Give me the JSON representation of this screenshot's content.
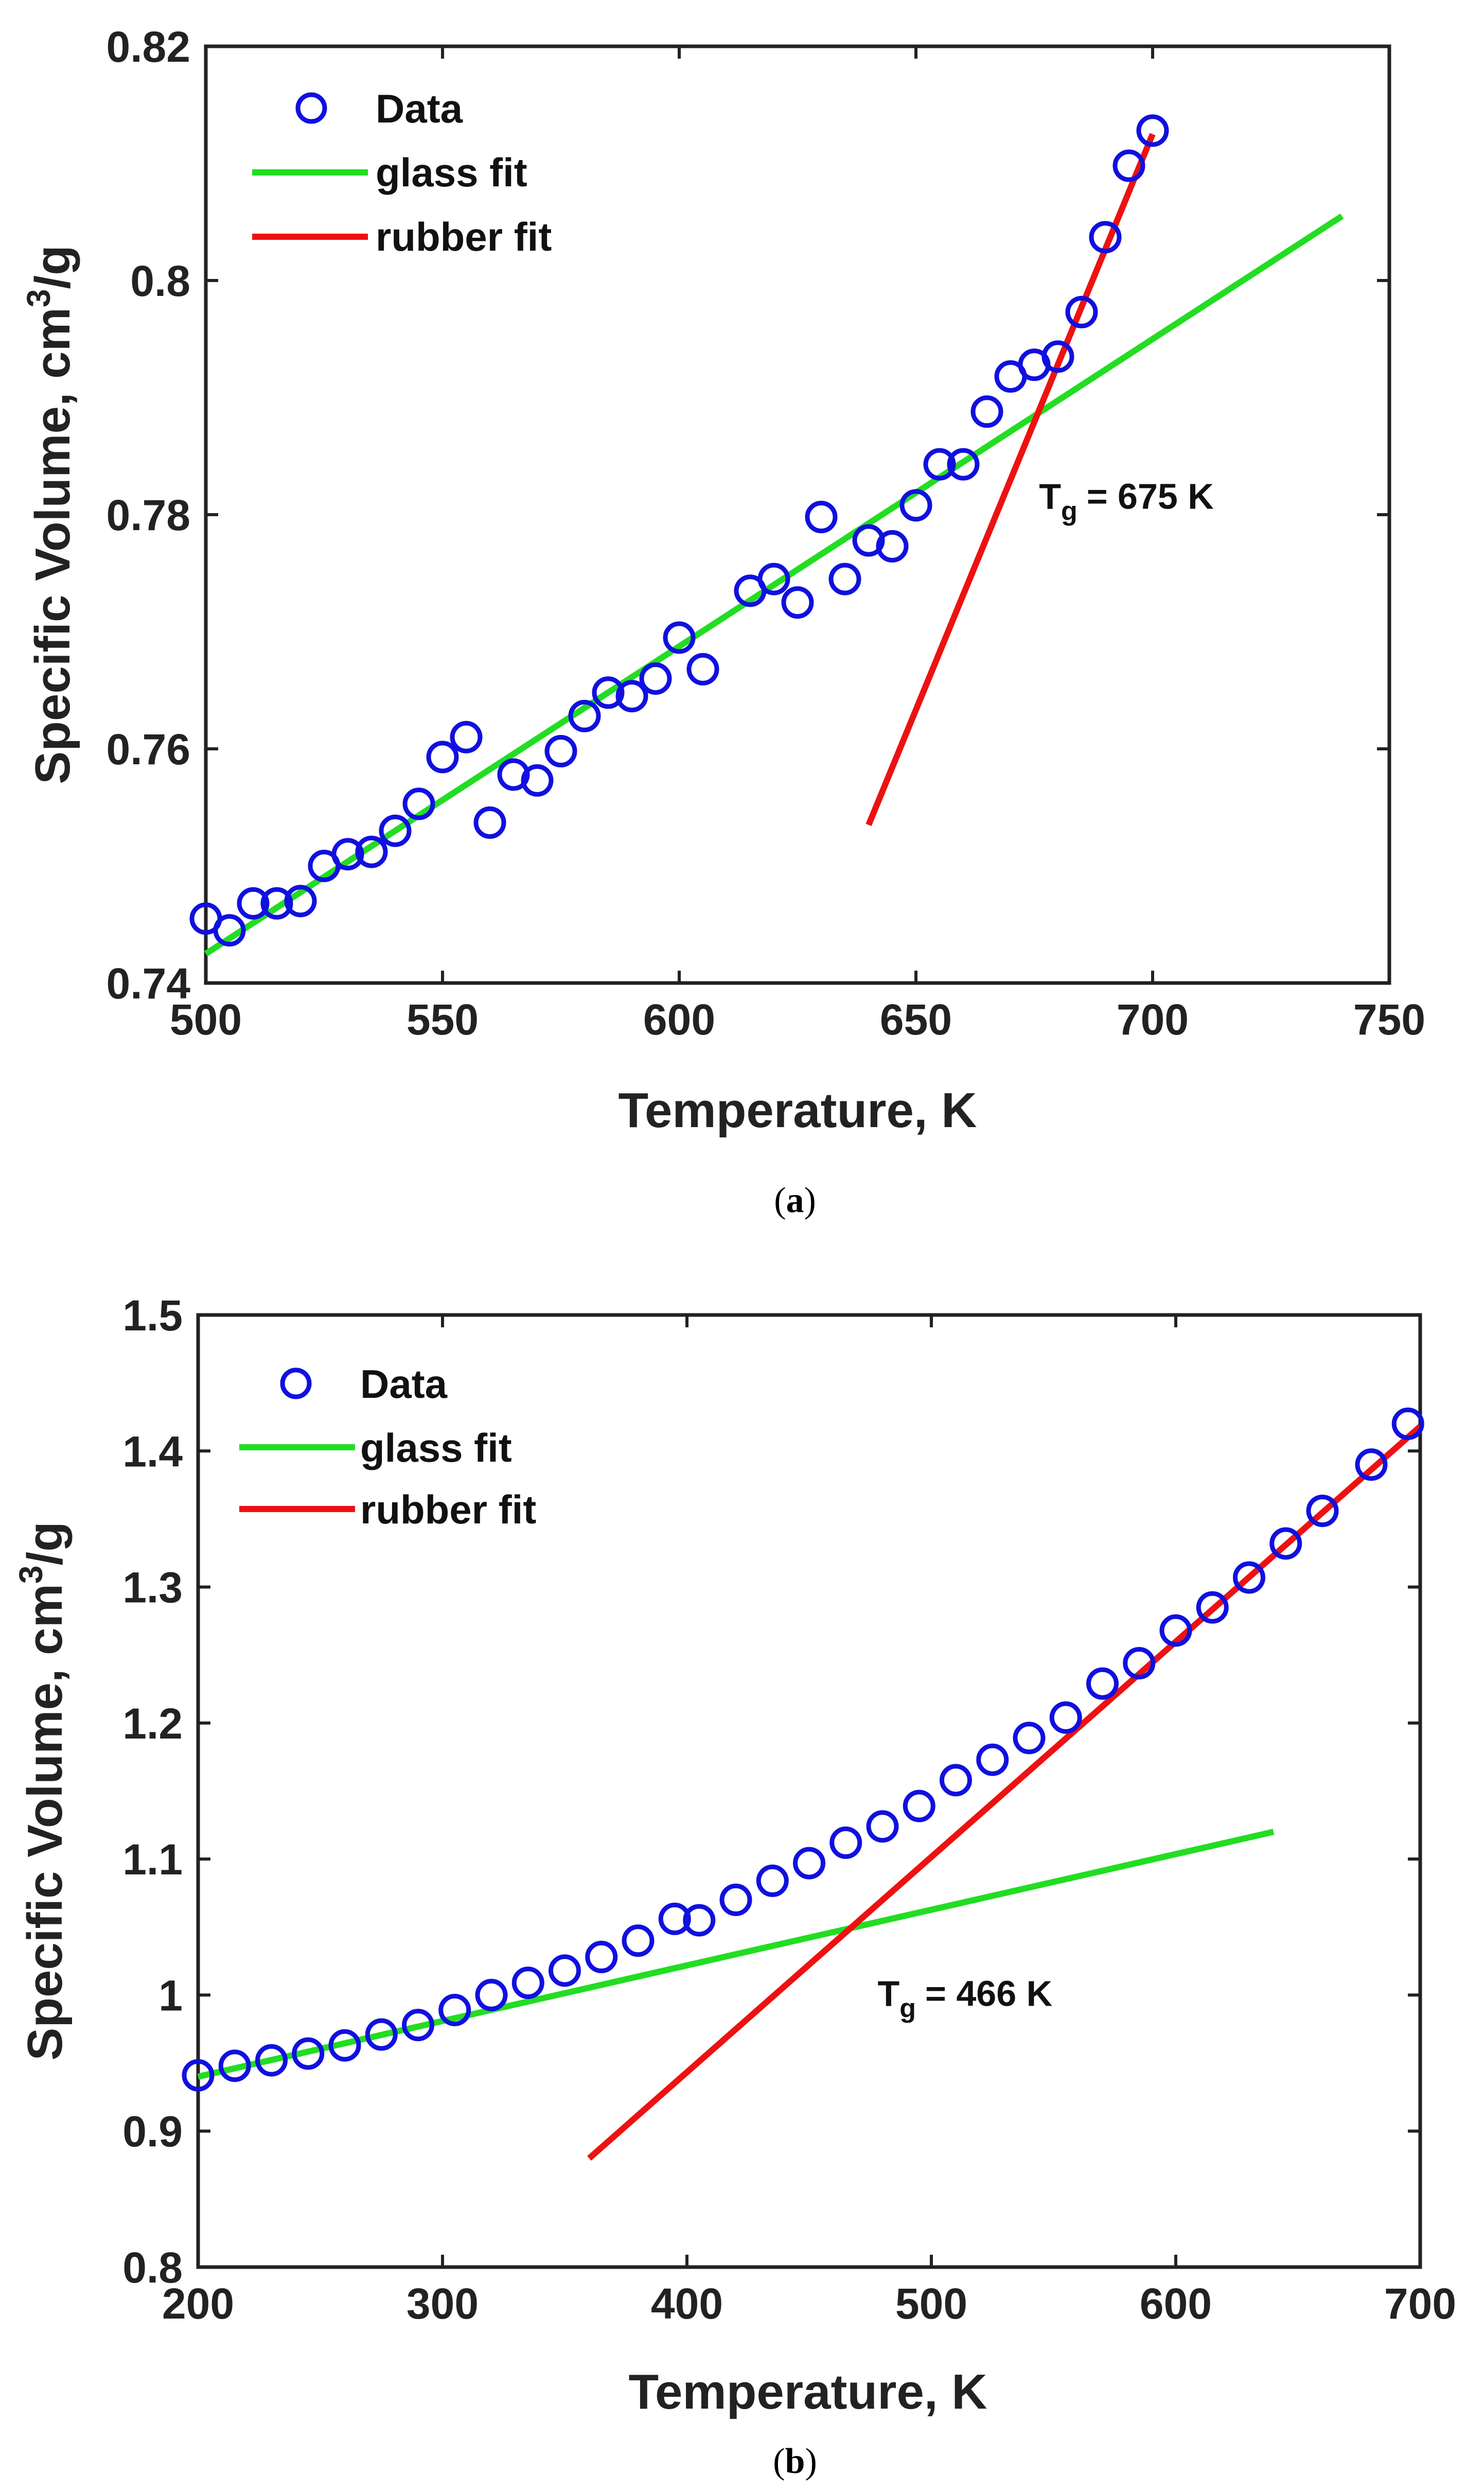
{
  "chart_data": [
    {
      "type": "scatter",
      "panel": "a",
      "caption_letter": "a",
      "xlabel": "Temperature, K",
      "ylabel": "Specific Volume, cm",
      "ylabel_sup": "3",
      "ylabel_tail": "/g",
      "xlim": [
        500,
        750
      ],
      "ylim": [
        0.74,
        0.82
      ],
      "xticks": [
        500,
        550,
        600,
        650,
        700,
        750
      ],
      "xtick_labels": [
        "500",
        "550",
        "600",
        "650",
        "700",
        "750"
      ],
      "yticks": [
        0.74,
        0.76,
        0.78,
        0.8,
        0.82
      ],
      "ytick_labels": [
        "0.74",
        "0.76",
        "0.78",
        "0.8",
        "0.82"
      ],
      "legend": {
        "placement": "top-left",
        "entries": [
          "Data",
          "glass fit",
          "rubber fit"
        ]
      },
      "annotation": {
        "prefix": "T",
        "sub": "g",
        "value": "= 675 K",
        "x": 676,
        "y": 0.7805
      },
      "series": [
        {
          "name": "Data",
          "kind": "marker",
          "color": "#1010e0",
          "x": [
            500,
            505,
            510,
            515,
            520,
            525,
            530,
            535,
            540,
            545,
            550,
            555,
            560,
            565,
            570,
            575,
            580,
            585,
            590,
            595,
            600,
            605,
            615,
            620,
            625,
            630,
            635,
            640,
            645,
            650,
            655,
            660,
            665,
            670,
            675,
            680,
            685,
            690,
            695,
            700
          ],
          "y": [
            0.7455,
            0.7445,
            0.7468,
            0.7468,
            0.747,
            0.75,
            0.751,
            0.7512,
            0.753,
            0.7553,
            0.7593,
            0.761,
            0.7537,
            0.7578,
            0.7573,
            0.7598,
            0.7628,
            0.7648,
            0.7645,
            0.766,
            0.7695,
            0.7668,
            0.7735,
            0.7745,
            0.7725,
            0.7798,
            0.7745,
            0.7778,
            0.7773,
            0.7808,
            0.7843,
            0.7843,
            0.7888,
            0.7918,
            0.7928,
            0.7935,
            0.7973,
            0.8037,
            0.8098,
            0.8128
          ]
        },
        {
          "name": "glass fit",
          "kind": "line",
          "color": "#22dd22",
          "x": [
            500,
            740
          ],
          "y": [
            0.7425,
            0.8055
          ]
        },
        {
          "name": "rubber fit",
          "kind": "line",
          "color": "#ee1111",
          "x": [
            640,
            700
          ],
          "y": [
            0.7535,
            0.8125
          ]
        }
      ]
    },
    {
      "type": "scatter",
      "panel": "b",
      "caption_letter": "b",
      "xlabel": "Temperature, K",
      "ylabel": "Specific Volume, cm",
      "ylabel_sup": "3",
      "ylabel_tail": "/g",
      "xlim": [
        200,
        700
      ],
      "ylim": [
        0.8,
        1.5
      ],
      "xticks": [
        200,
        300,
        400,
        500,
        600,
        700
      ],
      "xtick_labels": [
        "200",
        "300",
        "400",
        "500",
        "600",
        "700"
      ],
      "yticks": [
        0.8,
        0.9,
        1.0,
        1.1,
        1.2,
        1.3,
        1.4,
        1.5
      ],
      "ytick_labels": [
        "0.8",
        "0.9",
        "1",
        "1.1",
        "1.2",
        "1.3",
        "1.4",
        "1.5"
      ],
      "legend": {
        "placement": "top-left",
        "entries": [
          "Data",
          "glass fit",
          "rubber fit"
        ]
      },
      "annotation": {
        "prefix": "T",
        "sub": "g",
        "value": "= 466 K",
        "x": 478,
        "y": 0.992
      },
      "series": [
        {
          "name": "Data",
          "kind": "marker",
          "color": "#1010e0",
          "x": [
            200,
            215,
            230,
            245,
            260,
            275,
            290,
            305,
            320,
            335,
            350,
            365,
            380,
            395,
            405,
            420,
            435,
            450,
            465,
            480,
            495,
            510,
            525,
            540,
            555,
            570,
            585,
            600,
            615,
            630,
            645,
            660,
            680,
            695
          ],
          "y": [
            0.941,
            0.948,
            0.952,
            0.957,
            0.963,
            0.971,
            0.978,
            0.989,
            1.0,
            1.009,
            1.018,
            1.028,
            1.04,
            1.056,
            1.055,
            1.07,
            1.084,
            1.097,
            1.112,
            1.124,
            1.139,
            1.158,
            1.173,
            1.189,
            1.204,
            1.229,
            1.244,
            1.268,
            1.285,
            1.307,
            1.332,
            1.356,
            1.39,
            1.42
          ]
        },
        {
          "name": "glass fit",
          "kind": "line",
          "color": "#22dd22",
          "x": [
            200,
            640
          ],
          "y": [
            0.94,
            1.12
          ]
        },
        {
          "name": "rubber fit",
          "kind": "line",
          "color": "#ee1111",
          "x": [
            360,
            700
          ],
          "y": [
            0.88,
            1.418
          ]
        }
      ]
    }
  ]
}
